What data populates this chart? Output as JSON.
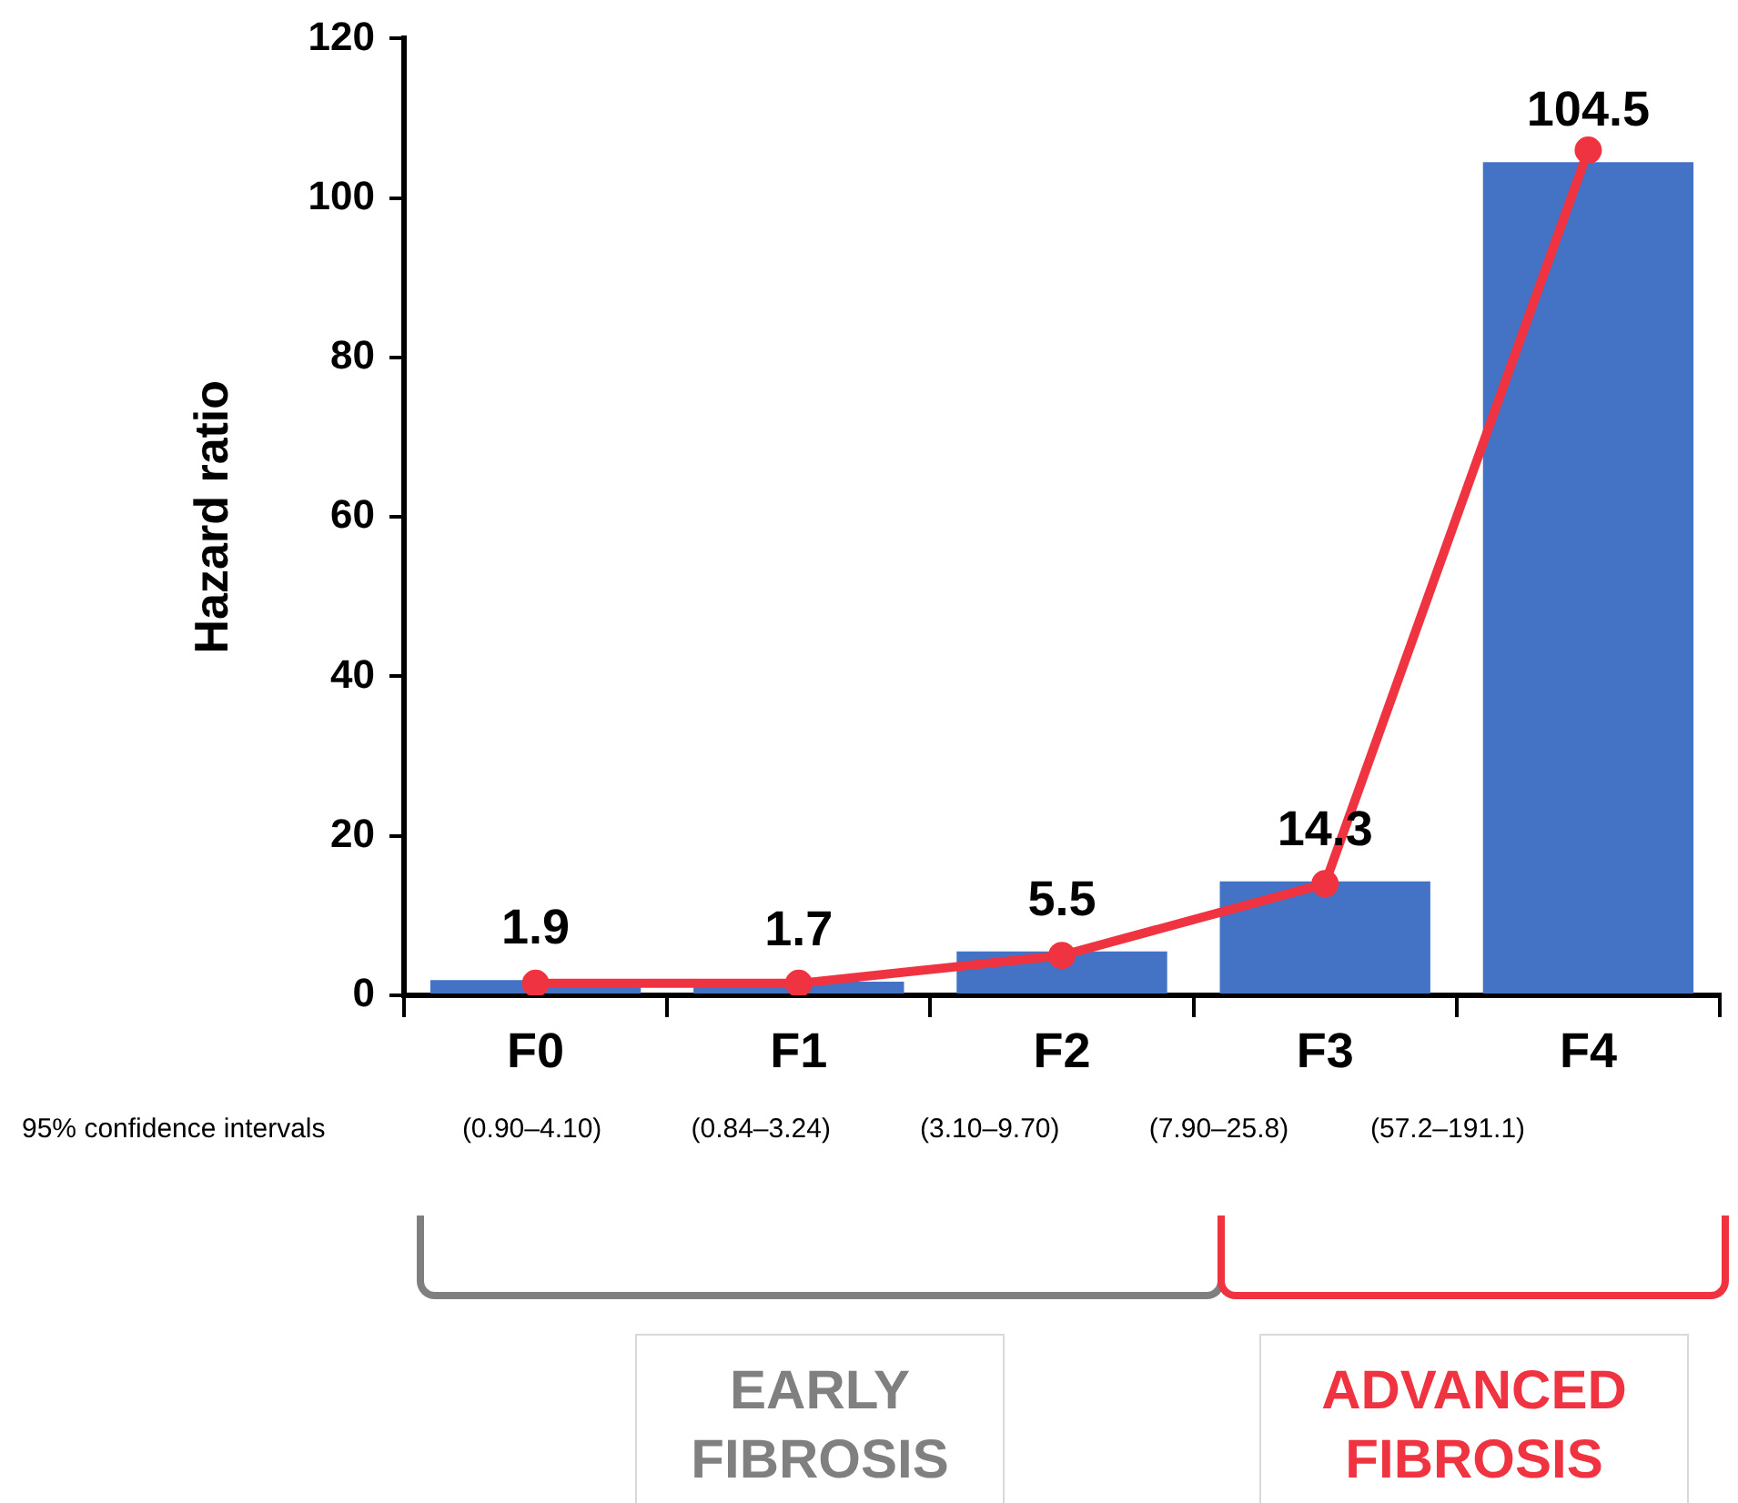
{
  "chart_data": {
    "type": "bar",
    "ylabel": "Hazard ratio",
    "categories": [
      "F0",
      "F1",
      "F2",
      "F3",
      "F4"
    ],
    "series": [
      {
        "color": "#4472c4",
        "values": [
          1.9,
          1.7,
          5.5,
          14.3,
          104.5
        ],
        "value_labels": [
          "1.9",
          "1.7",
          "5.5",
          "14.3",
          "104.5"
        ]
      },
      {
        "type": "line",
        "color": "#ef3340",
        "values": [
          1.5,
          1.5,
          5,
          14,
          106
        ],
        "marker": "circle"
      }
    ],
    "ylim": [
      0,
      120
    ],
    "yticks": [
      0,
      20,
      40,
      60,
      80,
      100,
      120
    ],
    "grid": false,
    "legend": false,
    "annotations": [
      "95% confidence intervals",
      "(0.90–4.10)",
      "(0.84–3.24)",
      "(3.10–9.70)",
      "(7.90–25.8)",
      "(57.2–191.1)",
      "EARLY FIBROSIS",
      "ADVANCED FIBROSIS"
    ]
  }
}
